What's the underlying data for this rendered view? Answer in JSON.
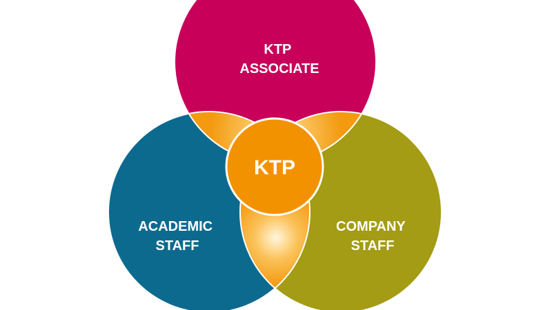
{
  "diagram": {
    "type": "venn",
    "sets": [
      {
        "id": "ktp-associate",
        "lines": [
          "KTP",
          "ASSOCIATE"
        ],
        "color": "#c8005a"
      },
      {
        "id": "academic-staff",
        "lines": [
          "ACADEMIC",
          "STAFF"
        ],
        "color": "#0d6a8f"
      },
      {
        "id": "company-staff",
        "lines": [
          "COMPANY",
          "STAFF"
        ],
        "color": "#a39c14"
      }
    ],
    "center": {
      "label": "KTP",
      "color": "#f39200"
    },
    "overlap_color": "#f5a31a",
    "overlap_highlight": "#fff6dc"
  }
}
